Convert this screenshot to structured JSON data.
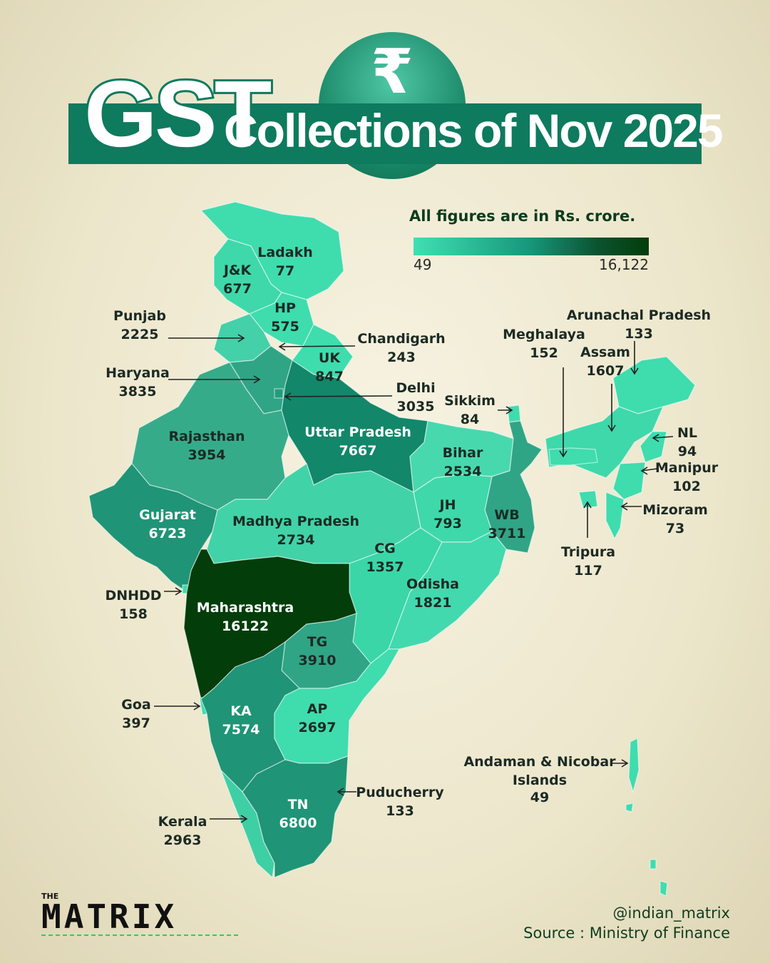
{
  "title": {
    "gst": "GST",
    "rest": "Collections of Nov 2025",
    "badge_glyph": "₹"
  },
  "legend": {
    "caption": "All figures are in Rs. crore.",
    "min": "49",
    "max": "16,122",
    "min_color": "#3fe0b2",
    "max_color": "#033d0a"
  },
  "states": [
    {
      "name": "Ladakh",
      "value": "77"
    },
    {
      "name": "J&K",
      "value": "677"
    },
    {
      "name": "HP",
      "value": "575"
    },
    {
      "name": "Punjab",
      "value": "2225"
    },
    {
      "name": "Chandigarh",
      "value": "243"
    },
    {
      "name": "UK",
      "value": "847"
    },
    {
      "name": "Haryana",
      "value": "3835"
    },
    {
      "name": "Delhi",
      "value": "3035"
    },
    {
      "name": "Rajasthan",
      "value": "3954"
    },
    {
      "name": "Uttar Pradesh",
      "value": "7667"
    },
    {
      "name": "Bihar",
      "value": "2534"
    },
    {
      "name": "Sikkim",
      "value": "84"
    },
    {
      "name": "Gujarat",
      "value": "6723"
    },
    {
      "name": "Madhya Pradesh",
      "value": "2734"
    },
    {
      "name": "JH",
      "value": "793"
    },
    {
      "name": "WB",
      "value": "3711"
    },
    {
      "name": "CG",
      "value": "1357"
    },
    {
      "name": "Odisha",
      "value": "1821"
    },
    {
      "name": "DNHDD",
      "value": "158"
    },
    {
      "name": "Maharashtra",
      "value": "16122"
    },
    {
      "name": "TG",
      "value": "3910"
    },
    {
      "name": "Goa",
      "value": "397"
    },
    {
      "name": "KA",
      "value": "7574"
    },
    {
      "name": "AP",
      "value": "2697"
    },
    {
      "name": "Puducherry",
      "value": "133"
    },
    {
      "name": "TN",
      "value": "6800"
    },
    {
      "name": "Kerala",
      "value": "2963"
    },
    {
      "name": "Arunachal Pradesh",
      "value": "133"
    },
    {
      "name": "Meghalaya",
      "value": "152"
    },
    {
      "name": "Assam",
      "value": "1607"
    },
    {
      "name": "NL",
      "value": "94"
    },
    {
      "name": "Manipur",
      "value": "102"
    },
    {
      "name": "Mizoram",
      "value": "73"
    },
    {
      "name": "Tripura",
      "value": "117"
    },
    {
      "name": "Andaman & Nicobar Islands",
      "value": "49"
    }
  ],
  "footer": {
    "handle": "@indian_matrix",
    "source": "Source : Ministry of Finance"
  },
  "logo": {
    "the": "THE",
    "word": "MATRIX"
  }
}
